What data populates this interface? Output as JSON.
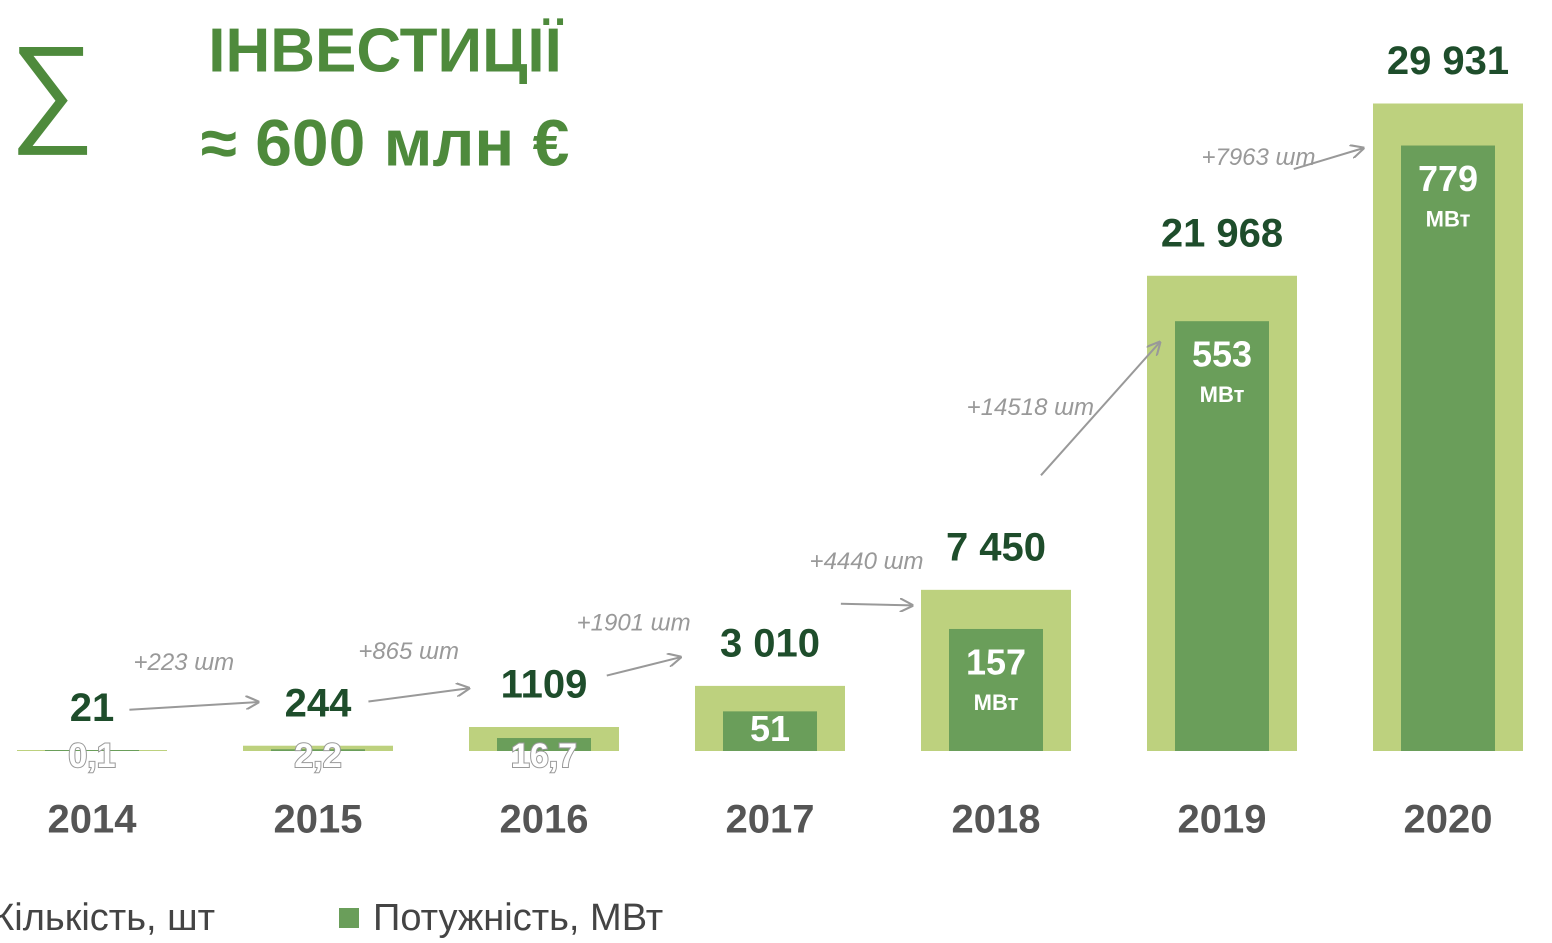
{
  "chart_data": {
    "type": "bar",
    "symbol": "∑",
    "title": "ІНВЕСТИЦІЇ",
    "subtitle": "≈ 600 млн €",
    "categories": [
      "2014",
      "2015",
      "2016",
      "2017",
      "2018",
      "2019",
      "2020"
    ],
    "series": [
      {
        "name": "Кількість, шт",
        "color": "#bdd17e",
        "values": [
          21,
          244,
          1109,
          3010,
          7450,
          21968,
          29931
        ],
        "value_labels": [
          "21",
          "244",
          "1109",
          "3 010",
          "7 450",
          "21 968",
          "29 931"
        ]
      },
      {
        "name": "Потужність, МВт",
        "color": "#6a9e5a",
        "axis": "y2",
        "unit": "МВт",
        "values": [
          0.1,
          2.2,
          16.7,
          51,
          157,
          553,
          779
        ],
        "value_labels": [
          "0,1",
          "2,2",
          "16,7",
          "51",
          "157",
          "553",
          "779"
        ]
      }
    ],
    "annotations": [
      "+223 шт",
      "+865 шт",
      "+1901 шт",
      "+4440 шт",
      "+14518 шт",
      "+7963 шт"
    ],
    "ylim": [
      0,
      30000
    ],
    "y2lim": [
      0,
      835
    ]
  }
}
